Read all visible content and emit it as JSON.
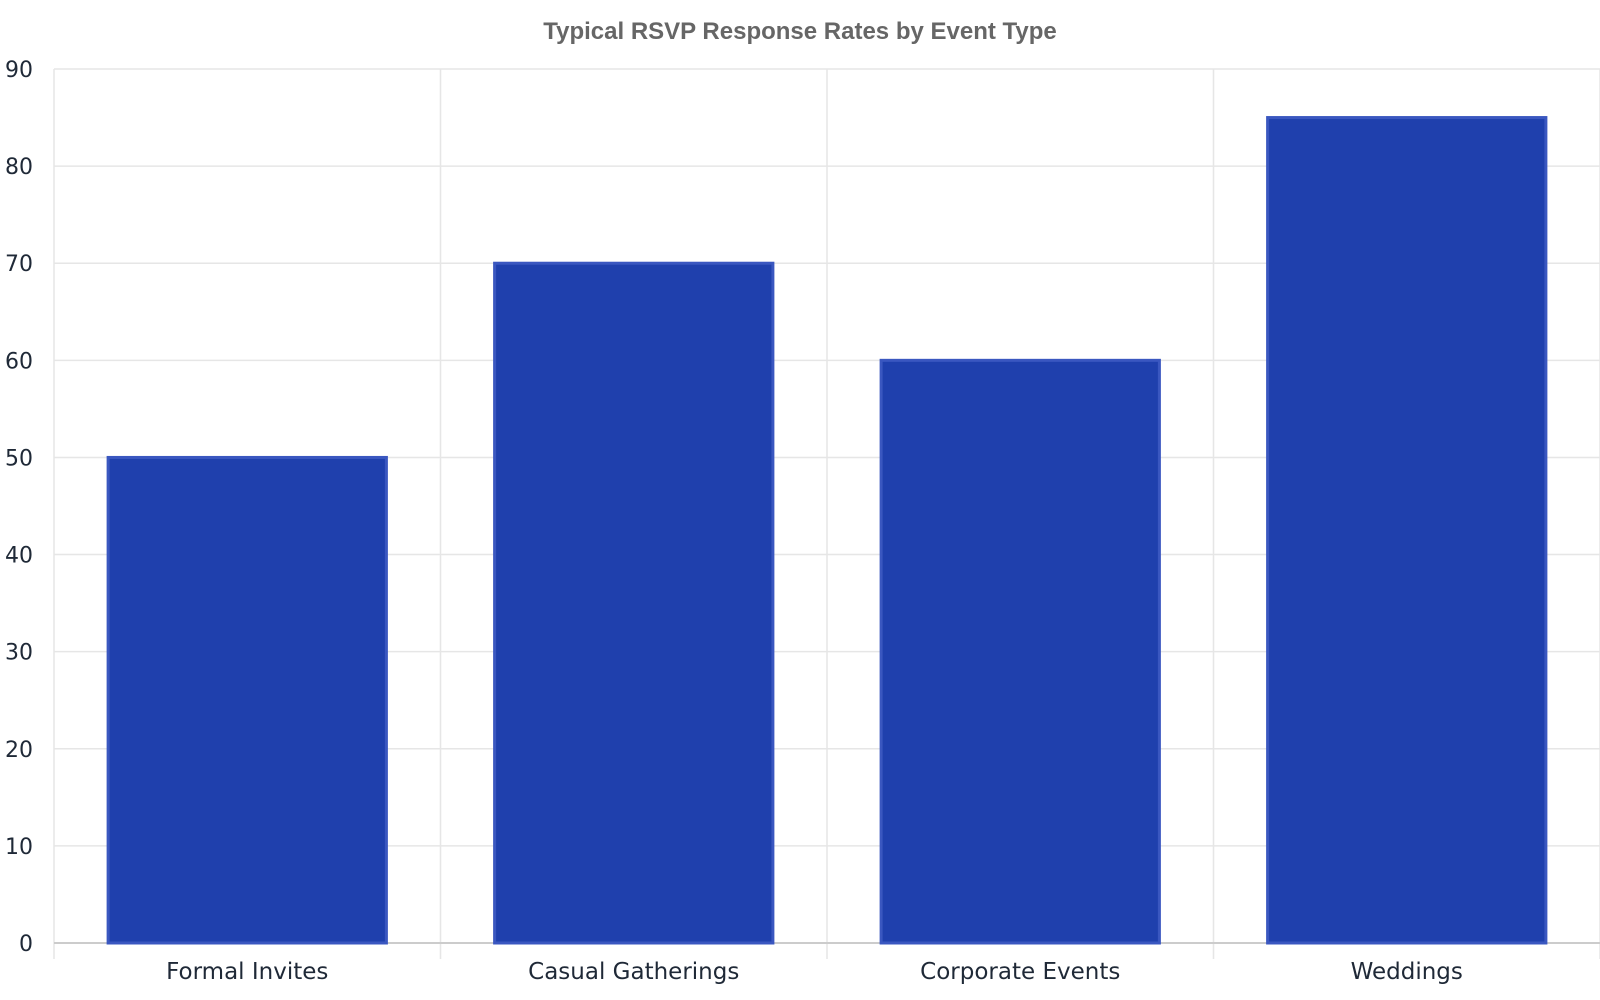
{
  "chart_data": {
    "type": "bar",
    "title": "Typical RSVP Response Rates by Event Type",
    "xlabel": "",
    "ylabel": "",
    "categories": [
      "Formal Invites",
      "Casual Gatherings",
      "Corporate Events",
      "Weddings"
    ],
    "values": [
      50,
      70,
      60,
      85
    ],
    "ylim": [
      0,
      90
    ],
    "yticks": [
      0,
      10,
      20,
      30,
      40,
      50,
      60,
      70,
      80,
      90
    ],
    "grid": true,
    "legend": "none",
    "colors": {
      "bar_fill": "#1f40ad",
      "bar_stroke": "#3a57c0",
      "grid": "#e6e6e6",
      "axis": "#cccccc"
    }
  }
}
